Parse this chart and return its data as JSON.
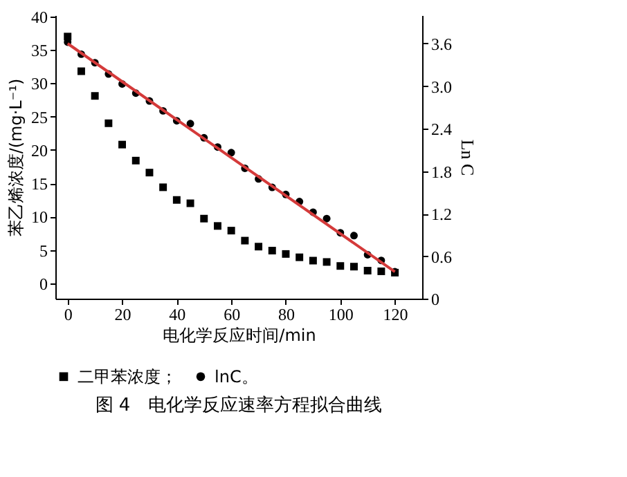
{
  "chart_data": {
    "type": "scatter",
    "title": "图 4　电化学反应速率方程拟合曲线",
    "xlabel": "电化学反应时间/min",
    "ylabel": "苯乙烯浓度/(mg·L⁻¹)",
    "y2label": "Ln C",
    "x": [
      0,
      5,
      10,
      15,
      20,
      25,
      30,
      35,
      40,
      45,
      50,
      55,
      60,
      65,
      70,
      75,
      80,
      85,
      90,
      95,
      100,
      105,
      110,
      115,
      120
    ],
    "series": [
      {
        "name": "二甲苯浓度；",
        "type": "scatter",
        "marker": "square",
        "color": "#000000",
        "values": [
          37.0,
          31.8,
          28.1,
          24.0,
          20.8,
          18.4,
          16.6,
          14.4,
          12.5,
          12.0,
          9.7,
          8.6,
          7.9,
          6.4,
          5.5,
          4.9,
          4.4,
          3.9,
          3.4,
          3.2,
          2.6,
          2.5,
          1.9,
          1.8,
          1.6
        ]
      },
      {
        "name": "lnC。",
        "type": "scatter",
        "axis": "y2",
        "marker": "circle",
        "color": "#000000",
        "values": [
          3.62,
          3.45,
          3.33,
          3.17,
          3.03,
          2.9,
          2.79,
          2.65,
          2.51,
          2.47,
          2.27,
          2.14,
          2.06,
          1.84,
          1.69,
          1.57,
          1.47,
          1.37,
          1.22,
          1.13,
          0.93,
          0.89,
          0.62,
          0.54,
          0.38
        ]
      },
      {
        "type": "line",
        "axis": "y2",
        "marker": "none",
        "color": "#d43a3a",
        "x": [
          0,
          120
        ],
        "values": [
          3.6,
          0.38
        ]
      }
    ],
    "xlim": [
      -4.5,
      130
    ],
    "xticks": [
      0,
      20,
      40,
      60,
      80,
      100,
      120
    ],
    "ylim": [
      -2.3,
      40.2
    ],
    "yticks": [
      0,
      5,
      10,
      15,
      20,
      25,
      30,
      35,
      40
    ],
    "y2lim": [
      0,
      4.0
    ],
    "y2ticks": [
      0,
      0.6,
      1.2,
      1.8,
      2.4,
      {
        "value": 3.0,
        "label": "3.0"
      },
      3.6
    ],
    "legend": "bottom"
  }
}
